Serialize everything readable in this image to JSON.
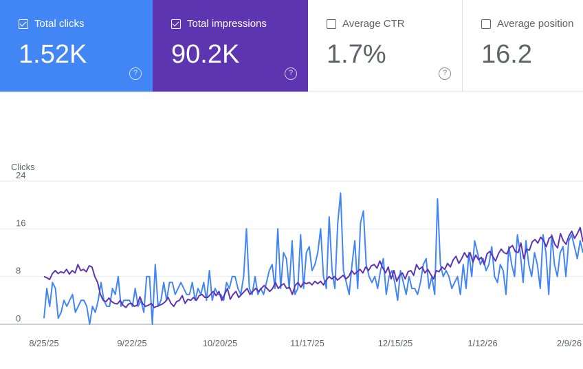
{
  "metrics": [
    {
      "label": "Total clicks",
      "value": "1.52K",
      "checked": true,
      "color": "#4285f4",
      "help": "?"
    },
    {
      "label": "Total impressions",
      "value": "90.2K",
      "checked": true,
      "color": "#5e35b1",
      "help": "?"
    },
    {
      "label": "Average CTR",
      "value": "1.7%",
      "checked": false,
      "help": "?"
    },
    {
      "label": "Average position",
      "value": "16.2",
      "checked": false
    }
  ],
  "chart_data": {
    "type": "line",
    "ylabel": "Clicks",
    "ylim": [
      0,
      24
    ],
    "yticks": [
      "0",
      "8",
      "16",
      "24"
    ],
    "xticks": [
      "8/25/25",
      "9/22/25",
      "10/20/25",
      "11/17/25",
      "12/15/25",
      "1/12/26",
      "2/9/26"
    ],
    "x_start": "8/25/25",
    "series": [
      {
        "color": "#4285f4",
        "values": [
          1,
          6,
          3,
          7,
          6,
          1,
          2,
          4,
          3,
          4,
          5,
          2,
          3,
          4,
          4,
          3,
          0,
          3,
          2,
          4,
          7,
          4,
          3,
          3,
          6,
          5,
          8,
          3,
          4,
          4,
          4,
          3,
          6,
          3,
          4,
          2,
          8,
          8,
          0,
          10,
          3,
          4,
          7,
          4,
          7,
          7,
          5,
          6,
          7,
          6,
          5,
          5,
          7,
          4,
          6,
          5,
          7,
          4,
          9,
          4,
          6,
          5,
          5,
          4,
          7,
          6,
          8,
          8,
          6,
          5,
          8,
          16,
          6,
          5,
          8,
          5,
          6,
          5,
          7,
          9,
          10,
          6,
          16,
          6,
          12,
          11,
          6,
          14,
          5,
          6,
          15,
          6,
          12,
          13,
          9,
          10,
          12,
          16,
          8,
          6,
          18,
          9,
          6,
          17,
          22,
          9,
          7,
          5,
          10,
          14,
          6,
          17,
          19,
          10,
          8,
          7,
          8,
          6,
          9,
          11,
          5,
          8,
          9,
          7,
          4,
          9,
          7,
          5,
          8,
          6,
          6,
          5,
          7,
          10,
          11,
          6,
          8,
          5,
          21,
          10,
          8,
          9,
          8,
          6,
          7,
          8,
          5,
          10,
          6,
          12,
          8,
          14,
          12,
          10,
          11,
          9,
          10,
          13,
          8,
          7,
          10,
          9,
          5,
          13,
          10,
          8,
          15,
          12,
          7,
          14,
          10,
          8,
          12,
          10,
          6,
          15,
          12,
          5,
          15,
          10,
          8,
          12,
          13,
          8,
          14,
          15,
          13,
          11,
          14,
          12
        ]
      },
      {
        "color": "#5e35b1",
        "values": [
          8,
          7.8,
          7.5,
          8.5,
          9,
          8.5,
          8.8,
          8.6,
          9.2,
          8.4,
          9,
          8.6,
          10,
          9,
          9.2,
          8.8,
          9.8,
          9.6,
          8,
          7,
          5,
          4,
          3.8,
          4.4,
          3.8,
          3.5,
          3.4,
          4,
          3.2,
          2.8,
          3.4,
          3.5,
          3,
          3.2,
          4.6,
          3.4,
          3,
          3.2,
          3.5,
          2.8,
          3,
          3.2,
          3.4,
          3.8,
          4.5,
          3.5,
          3,
          3.8,
          4,
          4.8,
          3.5,
          4.2,
          4,
          4.5,
          4,
          4.8,
          5,
          4.5,
          4.5,
          5,
          5.5,
          4.8,
          5.5,
          4,
          5,
          6,
          4.2,
          5,
          5.5,
          4.5,
          5,
          5.5,
          6,
          5,
          5.5,
          6,
          5.5,
          6,
          6.5,
          6,
          5.5,
          6,
          7,
          6,
          6.5,
          6.8,
          6,
          6.2,
          5,
          6.5,
          7,
          6.2,
          7,
          6.8,
          7,
          6.6,
          7.2,
          6.8,
          7.2,
          6.6,
          7.4,
          8,
          7.6,
          8,
          7.4,
          7.8,
          8.2,
          7.6,
          8,
          9,
          8.4,
          8.8,
          9.2,
          8.6,
          9.6,
          9,
          9.8,
          10,
          9.4,
          10.6,
          9.5,
          8.6,
          9.6,
          7.6,
          9,
          7.2,
          8.2,
          8.6,
          7.6,
          8.8,
          9,
          8.2,
          10,
          9.2,
          9.6,
          8.6,
          9.2,
          8.4,
          7.6,
          9,
          8.8,
          9.6,
          9.2,
          10.2,
          9.6,
          10.8,
          11.4,
          10.2,
          11,
          12,
          11.2,
          12,
          10.4,
          11.6,
          10.8,
          11.2,
          10,
          11.8,
          12.2,
          11.4,
          10.6,
          11.8,
          12.6,
          12,
          11.8,
          12.8,
          13.2,
          12.2,
          12,
          13.6,
          11,
          12.6,
          12.4,
          13.8,
          14.2,
          13.6,
          14.6,
          14,
          13,
          14.4,
          14.8,
          13.4,
          12.8,
          15.2,
          14,
          13.4,
          14.8,
          15.6,
          14.4,
          15.2,
          16.2,
          13.8
        ]
      }
    ]
  }
}
